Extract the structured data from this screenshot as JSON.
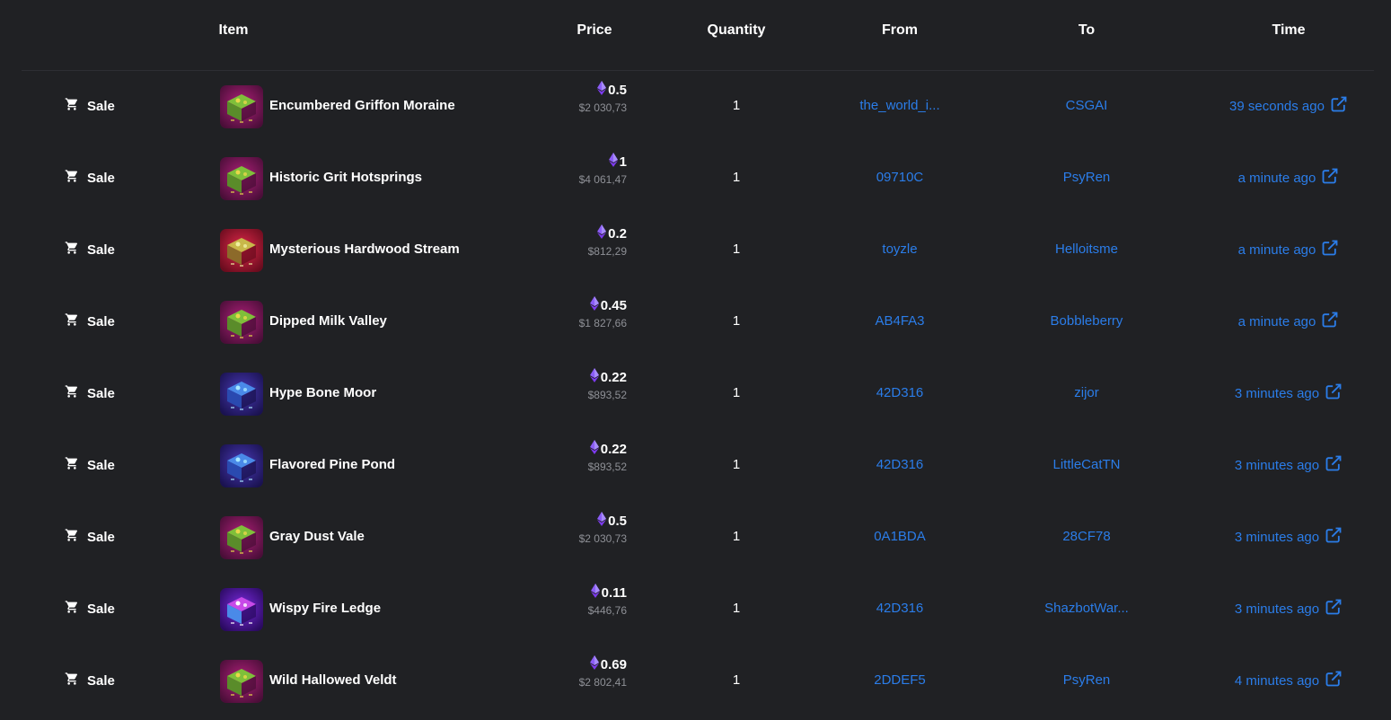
{
  "columns": [
    "Item",
    "Price",
    "Quantity",
    "From",
    "To",
    "Time"
  ],
  "colors": {
    "background": "#202124",
    "link": "#2b7de9",
    "eth": "#8b5cf6",
    "muted": "#8e9096"
  },
  "rows": [
    {
      "event": "Sale",
      "item": "Encumbered Griffon Moraine",
      "thumb": "forest",
      "eth": "0.5",
      "usd": "$2 030,73",
      "qty": "1",
      "from": "the_world_i...",
      "to": "CSGAI",
      "time": "39 seconds ago"
    },
    {
      "event": "Sale",
      "item": "Historic Grit Hotsprings",
      "thumb": "forest",
      "eth": "1",
      "usd": "$4 061,47",
      "qty": "1",
      "from": "09710C",
      "to": "PsyRen",
      "time": "a minute ago"
    },
    {
      "event": "Sale",
      "item": "Mysterious Hardwood Stream",
      "thumb": "red",
      "eth": "0.2",
      "usd": "$812,29",
      "qty": "1",
      "from": "toyzle",
      "to": "Helloitsme",
      "time": "a minute ago"
    },
    {
      "event": "Sale",
      "item": "Dipped Milk Valley",
      "thumb": "forest",
      "eth": "0.45",
      "usd": "$1 827,66",
      "qty": "1",
      "from": "AB4FA3",
      "to": "Bobbleberry",
      "time": "a minute ago"
    },
    {
      "event": "Sale",
      "item": "Hype Bone Moor",
      "thumb": "blue",
      "eth": "0.22",
      "usd": "$893,52",
      "qty": "1",
      "from": "42D316",
      "to": "zijor",
      "time": "3 minutes ago"
    },
    {
      "event": "Sale",
      "item": "Flavored Pine Pond",
      "thumb": "blue",
      "eth": "0.22",
      "usd": "$893,52",
      "qty": "1",
      "from": "42D316",
      "to": "LittleCatTN",
      "time": "3 minutes ago"
    },
    {
      "event": "Sale",
      "item": "Gray Dust Vale",
      "thumb": "forest",
      "eth": "0.5",
      "usd": "$2 030,73",
      "qty": "1",
      "from": "0A1BDA",
      "to": "28CF78",
      "time": "3 minutes ago"
    },
    {
      "event": "Sale",
      "item": "Wispy Fire Ledge",
      "thumb": "violet",
      "eth": "0.11",
      "usd": "$446,76",
      "qty": "1",
      "from": "42D316",
      "to": "ShazbotWar...",
      "time": "3 minutes ago"
    },
    {
      "event": "Sale",
      "item": "Wild Hallowed Veldt",
      "thumb": "forest",
      "eth": "0.69",
      "usd": "$2 802,41",
      "qty": "1",
      "from": "2DDEF5",
      "to": "PsyRen",
      "time": "4 minutes ago"
    }
  ]
}
